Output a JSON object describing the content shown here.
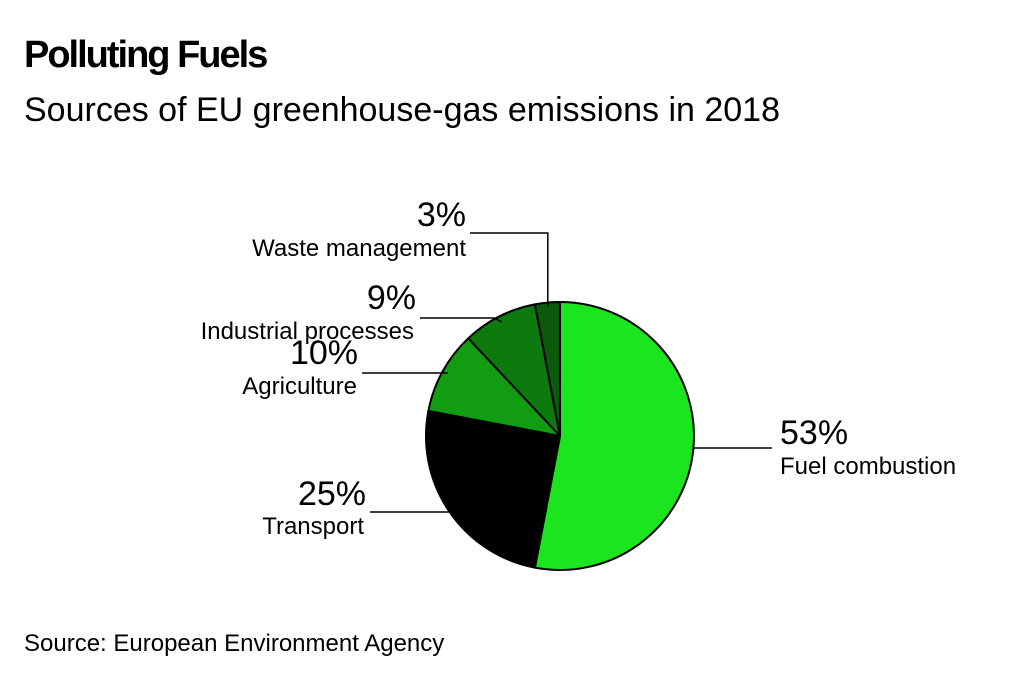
{
  "title": "Polluting Fuels",
  "subtitle": "Sources of EU greenhouse-gas emissions in 2018",
  "source": "Source: European Environment Agency",
  "chart_data": {
    "type": "pie",
    "title": "Polluting Fuels",
    "subtitle": "Sources of EU greenhouse-gas emissions in 2018",
    "start_angle_deg": 0,
    "direction": "clockwise",
    "slices": [
      {
        "label": "Fuel combustion",
        "value": 53,
        "value_label": "53%",
        "color": "#1ae51e"
      },
      {
        "label": "Transport",
        "value": 25,
        "value_label": "25%",
        "color": "#000000"
      },
      {
        "label": "Agriculture",
        "value": 10,
        "value_label": "10%",
        "color": "#129c12"
      },
      {
        "label": "Industrial processes",
        "value": 9,
        "value_label": "9%",
        "color": "#0d7a0d"
      },
      {
        "label": "Waste management",
        "value": 3,
        "value_label": "3%",
        "color": "#0b5a0b"
      }
    ],
    "outline_color": "#000000"
  }
}
